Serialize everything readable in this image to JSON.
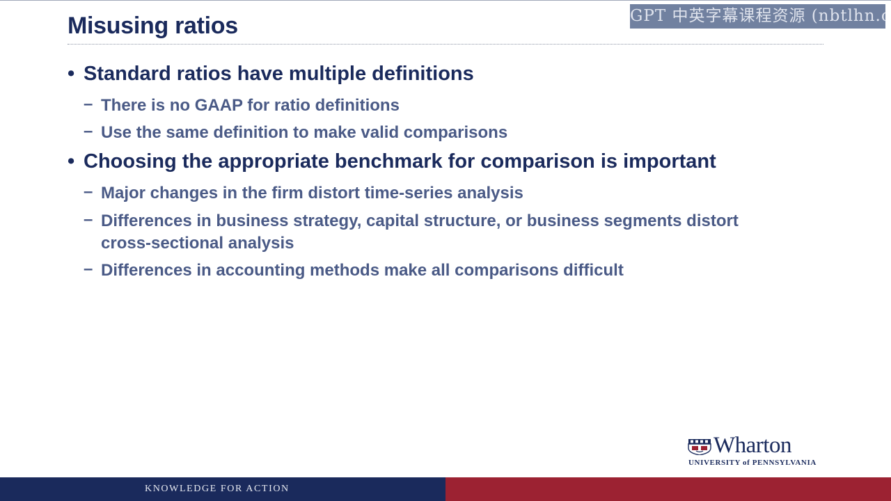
{
  "slide": {
    "title": "Misusing ratios",
    "watermark": "GPT 中英字幕课程资源 (nbtlhn.com)",
    "bullet_symbol": "•",
    "dash_symbol": "–",
    "bullets": [
      {
        "text": "Standard ratios have multiple definitions",
        "subs": [
          "There is no GAAP for ratio definitions",
          "Use the same definition to make valid comparisons"
        ]
      },
      {
        "text": "Choosing the appropriate benchmark for comparison is important",
        "subs": [
          "Major changes in the firm distort time-series analysis",
          "Differences in business strategy, capital structure, or business segments distort",
          "cross-sectional analysis",
          "Differences in accounting methods make all comparisons difficult"
        ]
      }
    ],
    "logo": {
      "name": "Wharton",
      "subtitle": "UNIVERSITY of PENNSYLVANIA"
    },
    "footer": {
      "tagline": "KNOWLEDGE FOR ACTION"
    },
    "colors": {
      "navy": "#1a2a5c",
      "crimson": "#9c2232",
      "subtext": "#4a5a86"
    }
  }
}
